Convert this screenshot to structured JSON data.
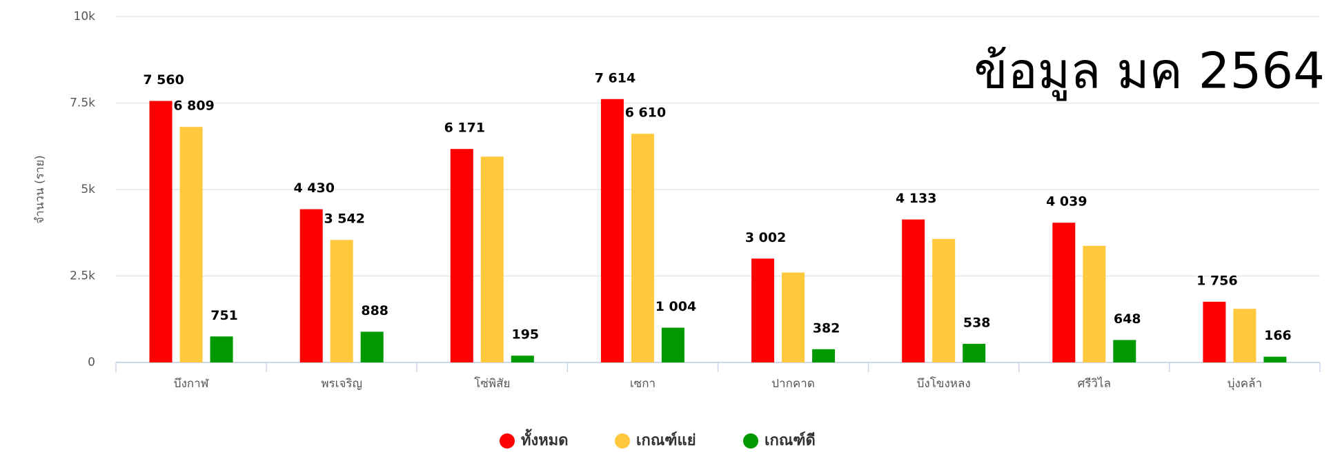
{
  "chart_data": {
    "type": "bar",
    "annotation": "ข้อมูล มค 2564",
    "y_label": "จำนวน (ราย)",
    "categories": [
      "บึงกาฬ",
      "พรเจริญ",
      "โซ่พิสัย",
      "เซกา",
      "ปากคาด",
      "บึงโขงหลง",
      "ศรีวิไล",
      "บุ่งคล้า"
    ],
    "series": [
      {
        "name": "ทั้งหมด",
        "color": "#ff0000",
        "values": [
          7560,
          4430,
          6171,
          7614,
          3002,
          4133,
          4039,
          1756
        ],
        "value_labels": [
          "7 560",
          "4 430",
          "6 171",
          "7 614",
          "3 002",
          "4 133",
          "4 039",
          "1 756"
        ]
      },
      {
        "name": "เกณฑ์แย่",
        "color": "#ffc83d",
        "values": [
          6809,
          3542,
          5950,
          6610,
          2600,
          3570,
          3370,
          1550
        ],
        "value_labels": [
          "6 809",
          "3 542",
          null,
          "6 610",
          null,
          null,
          null,
          null
        ]
      },
      {
        "name": "เกณฑ์ดี",
        "color": "#009900",
        "values": [
          751,
          888,
          195,
          1004,
          382,
          538,
          648,
          166
        ],
        "value_labels": [
          "751",
          "888",
          "195",
          "1 004",
          "382",
          "538",
          "648",
          "166"
        ]
      }
    ],
    "ylim": [
      0,
      10000
    ],
    "yticks": [
      0,
      {
        "value": 2500,
        "label": "2.5k"
      },
      {
        "value": 5000,
        "label": "5k"
      },
      {
        "value": 7500,
        "label": "7.5k"
      },
      {
        "value": 10000,
        "label": "10k"
      }
    ],
    "grid": true,
    "legend": "bottom"
  }
}
